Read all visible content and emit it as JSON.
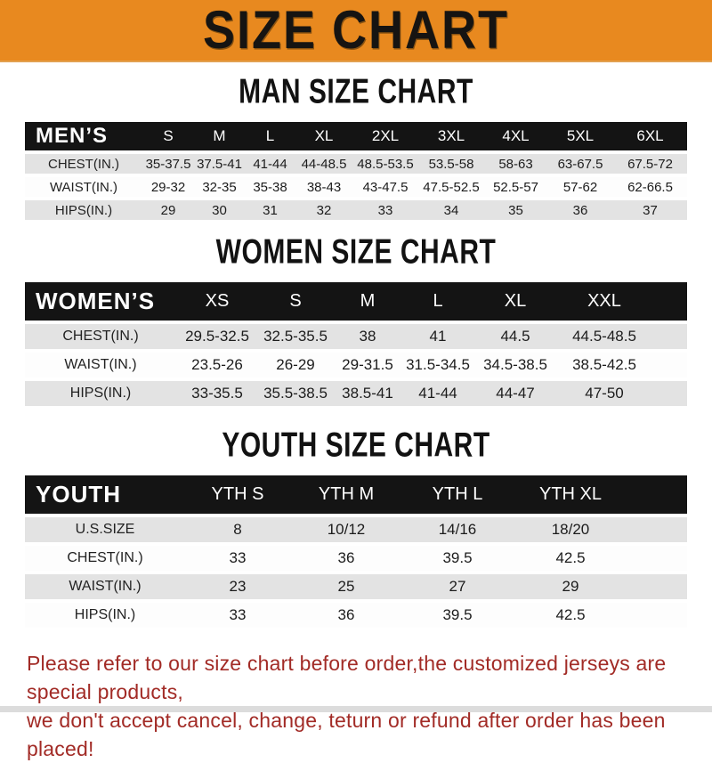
{
  "banner": {
    "title": "SIZE CHART",
    "bg_color": "#E8891F",
    "text_color": "#161412"
  },
  "colors": {
    "header_bar": "#141414",
    "row_alt": "#E3E3E3",
    "notice_text": "#A22B26"
  },
  "sections": [
    {
      "id": "men",
      "title": "MAN SIZE CHART",
      "label": "MEN’S",
      "columns": [
        "S",
        "M",
        "L",
        "XL",
        "2XL",
        "3XL",
        "4XL",
        "5XL",
        "6XL"
      ],
      "rows": [
        {
          "label": "CHEST(IN.)",
          "values": [
            "35-37.5",
            "37.5-41",
            "41-44",
            "44-48.5",
            "48.5-53.5",
            "53.5-58",
            "58-63",
            "63-67.5",
            "67.5-72"
          ]
        },
        {
          "label": "WAIST(IN.)",
          "values": [
            "29-32",
            "32-35",
            "35-38",
            "38-43",
            "43-47.5",
            "47.5-52.5",
            "52.5-57",
            "57-62",
            "62-66.5"
          ]
        },
        {
          "label": "HIPS(IN.)",
          "values": [
            "29",
            "30",
            "31",
            "32",
            "33",
            "34",
            "35",
            "36",
            "37"
          ]
        }
      ]
    },
    {
      "id": "women",
      "title": "WOMEN SIZE CHART",
      "label": "WOMEN’S",
      "columns": [
        "XS",
        "S",
        "M",
        "L",
        "XL",
        "XXL"
      ],
      "rows": [
        {
          "label": "CHEST(IN.)",
          "values": [
            "29.5-32.5",
            "32.5-35.5",
            "38",
            "41",
            "44.5",
            "44.5-48.5"
          ]
        },
        {
          "label": "WAIST(IN.)",
          "values": [
            "23.5-26",
            "26-29",
            "29-31.5",
            "31.5-34.5",
            "34.5-38.5",
            "38.5-42.5"
          ]
        },
        {
          "label": "HIPS(IN.)",
          "values": [
            "33-35.5",
            "35.5-38.5",
            "38.5-41",
            "41-44",
            "44-47",
            "47-50"
          ]
        }
      ]
    },
    {
      "id": "youth",
      "title": "YOUTH SIZE CHART",
      "label": "YOUTH",
      "columns": [
        "YTH S",
        "YTH M",
        "YTH L",
        "YTH XL"
      ],
      "rows": [
        {
          "label": "U.S.SIZE",
          "values": [
            "8",
            "10/12",
            "14/16",
            "18/20"
          ]
        },
        {
          "label": "CHEST(IN.)",
          "values": [
            "33",
            "36",
            "39.5",
            "42.5"
          ]
        },
        {
          "label": "WAIST(IN.)",
          "values": [
            "23",
            "25",
            "27",
            "29"
          ]
        },
        {
          "label": "HIPS(IN.)",
          "values": [
            "33",
            "36",
            "39.5",
            "42.5"
          ]
        }
      ]
    }
  ],
  "footer": {
    "line1": "Please refer to our size chart before order,the customized jerseys are special products,",
    "line2": "we don't accept cancel, change, teturn or refund after order has been placed!"
  }
}
